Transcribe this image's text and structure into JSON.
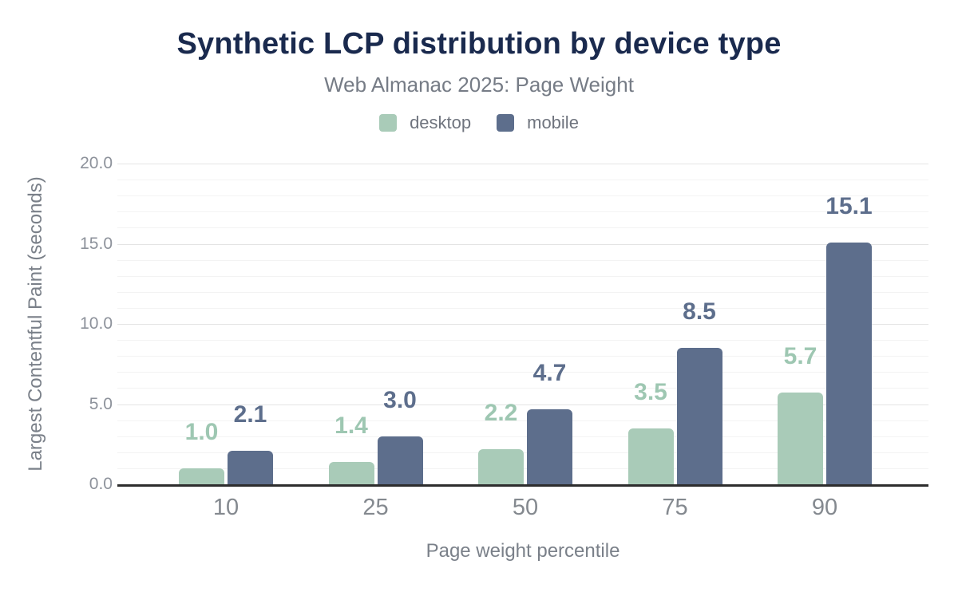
{
  "header": {
    "title": "Synthetic LCP distribution by device type",
    "subtitle": "Web Almanac 2025: Page Weight"
  },
  "chart_data": {
    "type": "bar",
    "title": "Synthetic LCP distribution by device type",
    "subtitle": "Web Almanac 2025: Page Weight",
    "categories": [
      "10",
      "25",
      "50",
      "75",
      "90"
    ],
    "series": [
      {
        "name": "desktop",
        "color": "#a9cbb8",
        "label_color": "#9ec7b2",
        "values": [
          1.0,
          1.4,
          2.2,
          3.5,
          5.7
        ]
      },
      {
        "name": "mobile",
        "color": "#5d6e8c",
        "label_color": "#5d6e8c",
        "values": [
          2.1,
          3.0,
          4.7,
          8.5,
          15.1
        ]
      }
    ],
    "xlabel": "Page weight percentile",
    "ylabel": "Largest Contentful Paint (seconds)",
    "ylim": [
      0,
      20
    ],
    "y_major_step": 5,
    "y_minor_step": 1,
    "y_tick_labels": [
      "0.0",
      "5.0",
      "10.0",
      "15.0",
      "20.0"
    ],
    "grid": true,
    "legend_position": "top",
    "value_labels_shown": true
  },
  "colors": {
    "title": "#1a2a4e",
    "subtitle_gray": "#767c86",
    "axis_text_gray": "#84898f",
    "axis_line": "#2d2d2d",
    "gridline_major": "#e4e4e4",
    "gridline_minor": "#f3f3f3",
    "background": "#ffffff"
  }
}
